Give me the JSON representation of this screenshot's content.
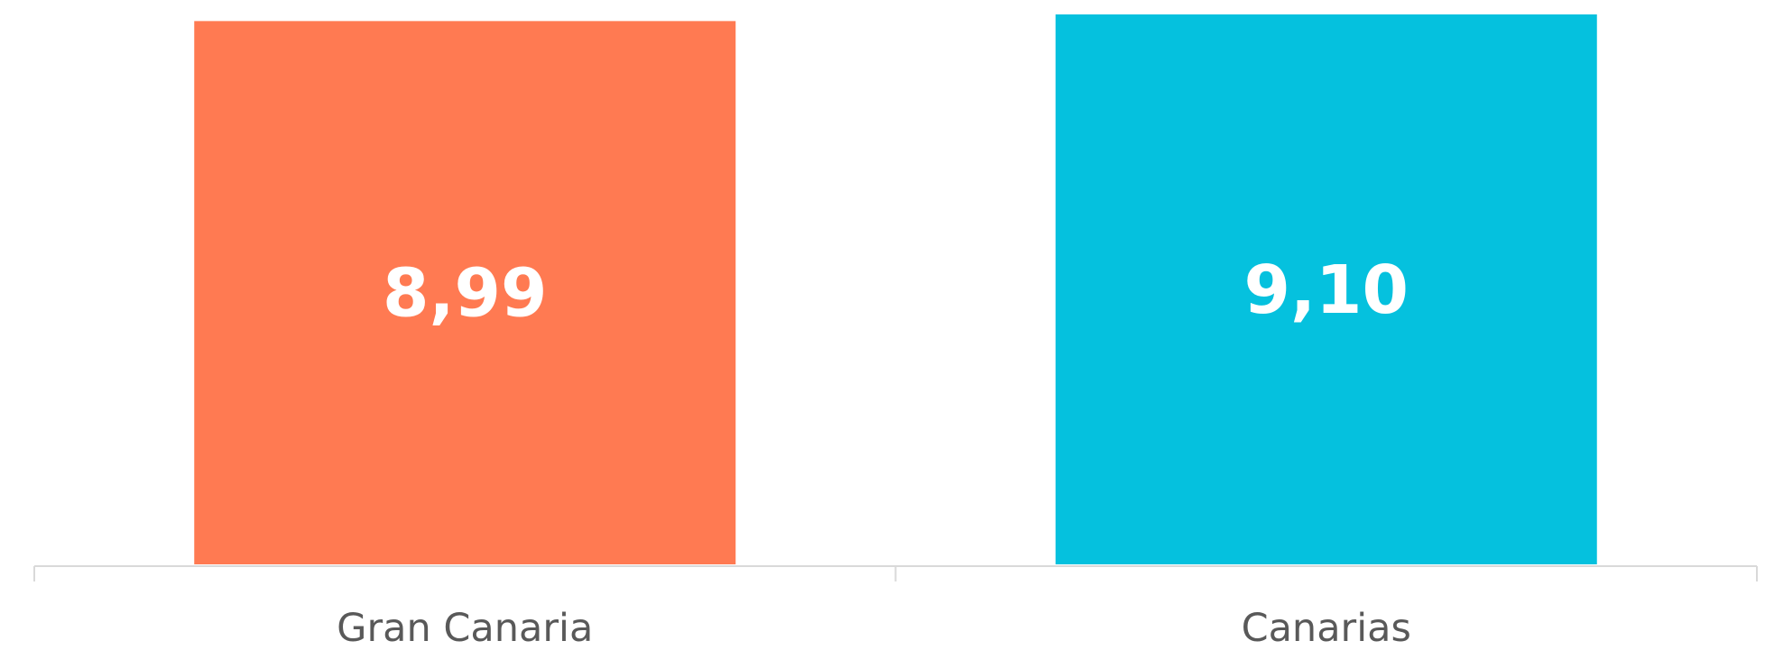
{
  "chart_data": {
    "type": "bar",
    "categories": [
      "Gran Canaria",
      "Canarias"
    ],
    "values": [
      8.99,
      9.1
    ],
    "value_labels": [
      "8,99",
      "9,10"
    ],
    "colors": [
      "#FF7A52",
      "#05C1DE"
    ],
    "title": "",
    "xlabel": "",
    "ylabel": "",
    "ylim": [
      0,
      9.1
    ],
    "grid": false,
    "legend": "none",
    "axis_color": "#D9D9D9",
    "tick_label_color": "#595959",
    "data_label_color": "#FFFFFF"
  }
}
